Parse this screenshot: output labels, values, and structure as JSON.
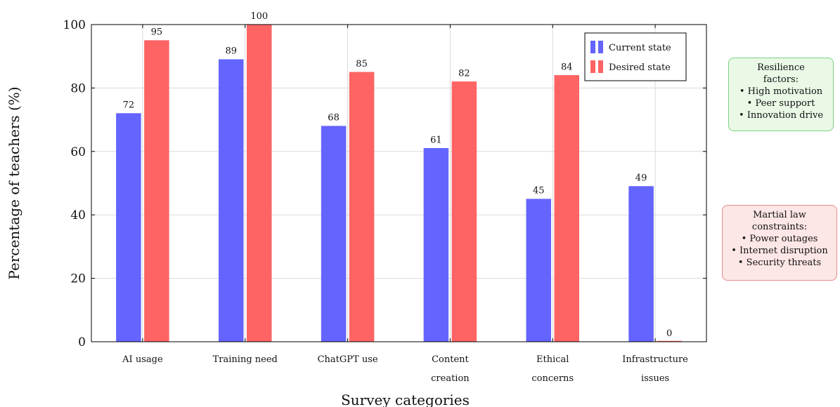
{
  "chart_data": {
    "type": "bar",
    "title": "",
    "xlabel": "Survey categories",
    "ylabel": "Percentage of teachers (%)",
    "ylim": [
      0,
      100
    ],
    "yticks": [
      0,
      20,
      40,
      60,
      80,
      100
    ],
    "grid": true,
    "legend_position": "top-right",
    "categories": [
      [
        "AI usage"
      ],
      [
        "Training need"
      ],
      [
        "ChatGPT use"
      ],
      [
        "Content",
        "creation"
      ],
      [
        "Ethical",
        "concerns"
      ],
      [
        "Infrastructure",
        "issues"
      ]
    ],
    "series": [
      {
        "name": "Current state",
        "color": "#6464ff",
        "values": [
          72,
          89,
          68,
          61,
          45,
          49
        ]
      },
      {
        "name": "Desired state",
        "color": "#ff6464",
        "values": [
          95,
          100,
          85,
          82,
          84,
          0
        ]
      }
    ]
  },
  "annotations": {
    "resilience": {
      "lines": [
        "Resilience",
        "factors:",
        "• High motivation",
        "• Peer support",
        "• Innovation drive"
      ],
      "color": "#7ed07e"
    },
    "constraints": {
      "lines": [
        "Martial law",
        "constraints:",
        "• Power outages",
        "• Internet disruption",
        "• Security threats"
      ],
      "color": "#e88c8c"
    }
  }
}
